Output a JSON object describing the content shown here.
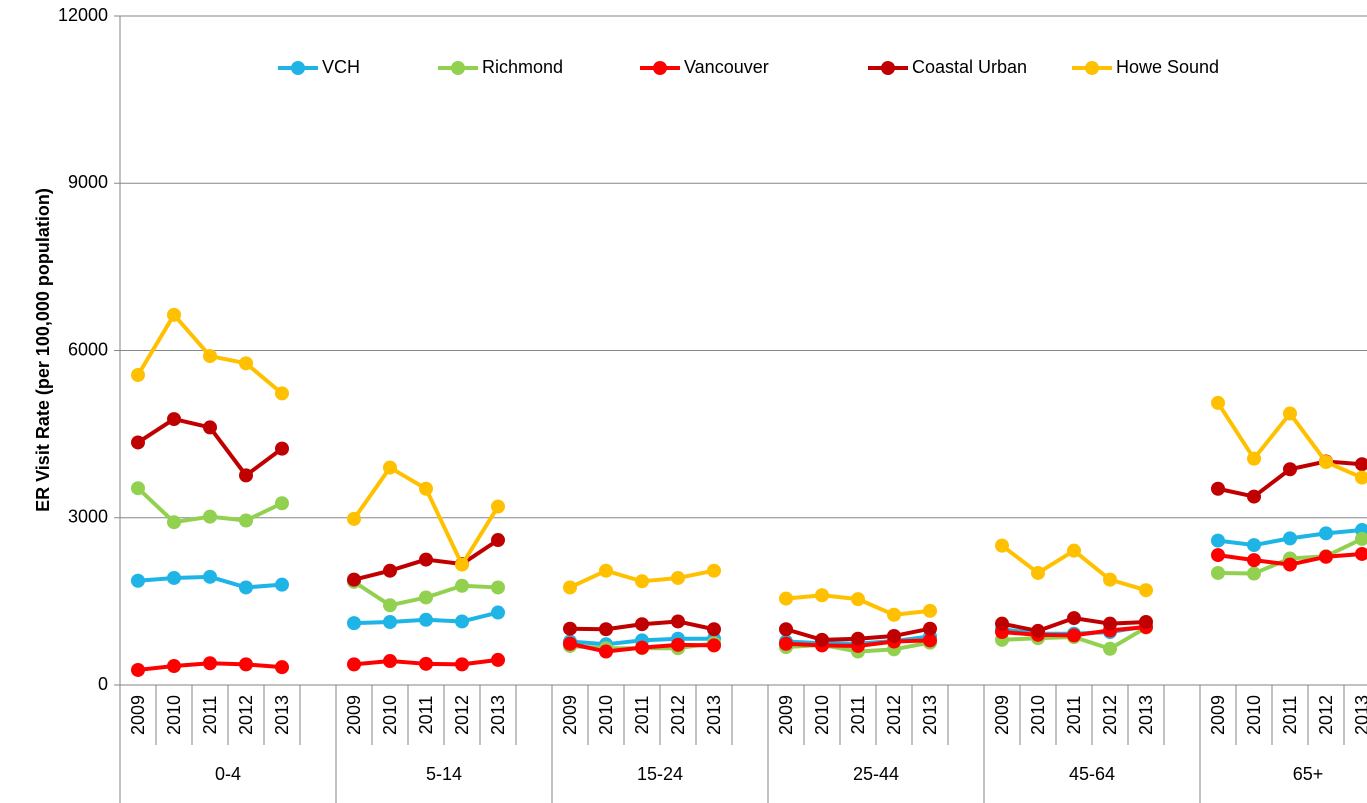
{
  "chart_data": {
    "type": "line",
    "y_label": "ER Visit Rate (per 100,000 population)",
    "ylim": [
      0,
      12000
    ],
    "yticks": [
      0,
      3000,
      6000,
      9000,
      12000
    ],
    "grid": true,
    "legend": "top",
    "groups": [
      "0-4",
      "5-14",
      "15-24",
      "25-44",
      "45-64",
      "65+"
    ],
    "categories": [
      "2009",
      "2010",
      "2011",
      "2012",
      "2013",
      null,
      "2009",
      "2010",
      "2011",
      "2012",
      "2013",
      null,
      "2009",
      "2010",
      "2011",
      "2012",
      "2013",
      null,
      "2009",
      "2010",
      "2011",
      "2012",
      "2013",
      null,
      "2009",
      "2010",
      "2011",
      "2012",
      "2013",
      null,
      "2009",
      "2010",
      "2011",
      "2012",
      "2013",
      null
    ],
    "series": [
      {
        "name": "VCH",
        "color": "#1fb4e6",
        "values": [
          1870,
          1920,
          1940,
          1750,
          1800,
          null,
          1110,
          1130,
          1170,
          1140,
          1300,
          null,
          780,
          730,
          800,
          830,
          830,
          null,
          780,
          750,
          740,
          790,
          870,
          null,
          1000,
          920,
          920,
          950,
          1050,
          null,
          2590,
          2510,
          2630,
          2720,
          2780,
          null
        ]
      },
      {
        "name": "Richmond",
        "color": "#92d050",
        "values": [
          3530,
          2920,
          3020,
          2950,
          3260,
          null,
          1850,
          1430,
          1570,
          1780,
          1750,
          null,
          700,
          660,
          660,
          660,
          750,
          null,
          680,
          720,
          600,
          640,
          760,
          null,
          810,
          840,
          860,
          650,
          1030,
          null,
          2010,
          2000,
          2270,
          2310,
          2620,
          null
        ]
      },
      {
        "name": "Vancouver",
        "color": "#ff0000",
        "values": [
          270,
          340,
          390,
          370,
          320,
          null,
          370,
          430,
          380,
          370,
          450,
          null,
          740,
          600,
          670,
          720,
          710,
          null,
          740,
          710,
          700,
          780,
          800,
          null,
          950,
          900,
          890,
          980,
          1040,
          null,
          2330,
          2240,
          2160,
          2300,
          2350,
          null
        ]
      },
      {
        "name": "Coastal Urban",
        "color": "#c00000",
        "values": [
          4350,
          4770,
          4620,
          3760,
          4240,
          null,
          1890,
          2050,
          2250,
          2170,
          2600,
          null,
          1010,
          1000,
          1090,
          1140,
          1000,
          null,
          1000,
          810,
          830,
          880,
          1010,
          null,
          1100,
          970,
          1200,
          1100,
          1130,
          null,
          3520,
          3380,
          3870,
          4010,
          3960,
          null
        ]
      },
      {
        "name": "Howe Sound",
        "color": "#ffc000",
        "values": [
          5560,
          6640,
          5900,
          5770,
          5230,
          null,
          2980,
          3900,
          3520,
          2160,
          3200,
          null,
          1750,
          2050,
          1860,
          1920,
          2050,
          null,
          1550,
          1610,
          1540,
          1260,
          1330,
          null,
          2500,
          2010,
          2410,
          1890,
          1700,
          null,
          5060,
          4060,
          4870,
          4000,
          3720,
          null
        ]
      }
    ]
  }
}
